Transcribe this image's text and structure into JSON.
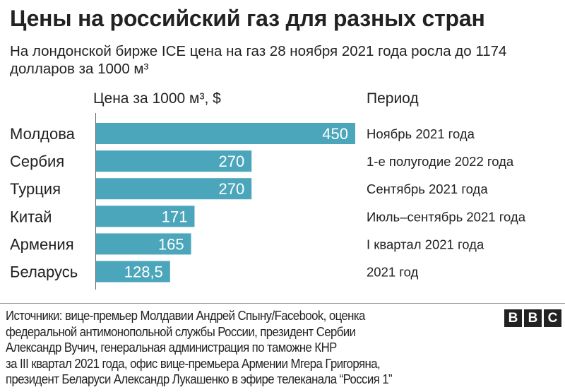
{
  "chart_data": {
    "type": "bar",
    "orientation": "horizontal",
    "title": "Цены на российский газ для разных стран",
    "subtitle": "На лондонской бирже ICE цена на газ 28 ноября 2021 года росла до 1174 долларов за 1000 м³",
    "value_header": "Цена за 1000 м³, $",
    "period_header": "Период",
    "categories": [
      "Молдова",
      "Сербия",
      "Турция",
      "Китай",
      "Армения",
      "Беларусь"
    ],
    "values": [
      450,
      270,
      270,
      171,
      165,
      128.5
    ],
    "value_labels": [
      "450",
      "270",
      "270",
      "171",
      "165",
      "128,5"
    ],
    "periods": [
      "Ноябрь 2021 года",
      "1-е полугодие 2022 года",
      "Сентябрь 2021 года",
      "Июль–сентябрь 2021 года",
      "I квартал 2021 года",
      "2021 год"
    ],
    "xlim": [
      0,
      450
    ],
    "grid": false,
    "bar_color": "#4ba6bb"
  },
  "footer": {
    "source_lines": [
      "Источники: вице-премьер Молдавии Андрей Спыну/Facebook, оценка",
      "федеральной антимонопольной службы России, президент Сербии",
      "Александр Вучич, генеральная администрация по таможне КНР",
      "за III квартал 2021 года, офис вице-премьера Армении Мгера Григоряна,",
      "президент Беларуси Александр Лукашенко в эфире телеканала “Россия 1”"
    ],
    "logo": [
      "B",
      "B",
      "C"
    ]
  }
}
